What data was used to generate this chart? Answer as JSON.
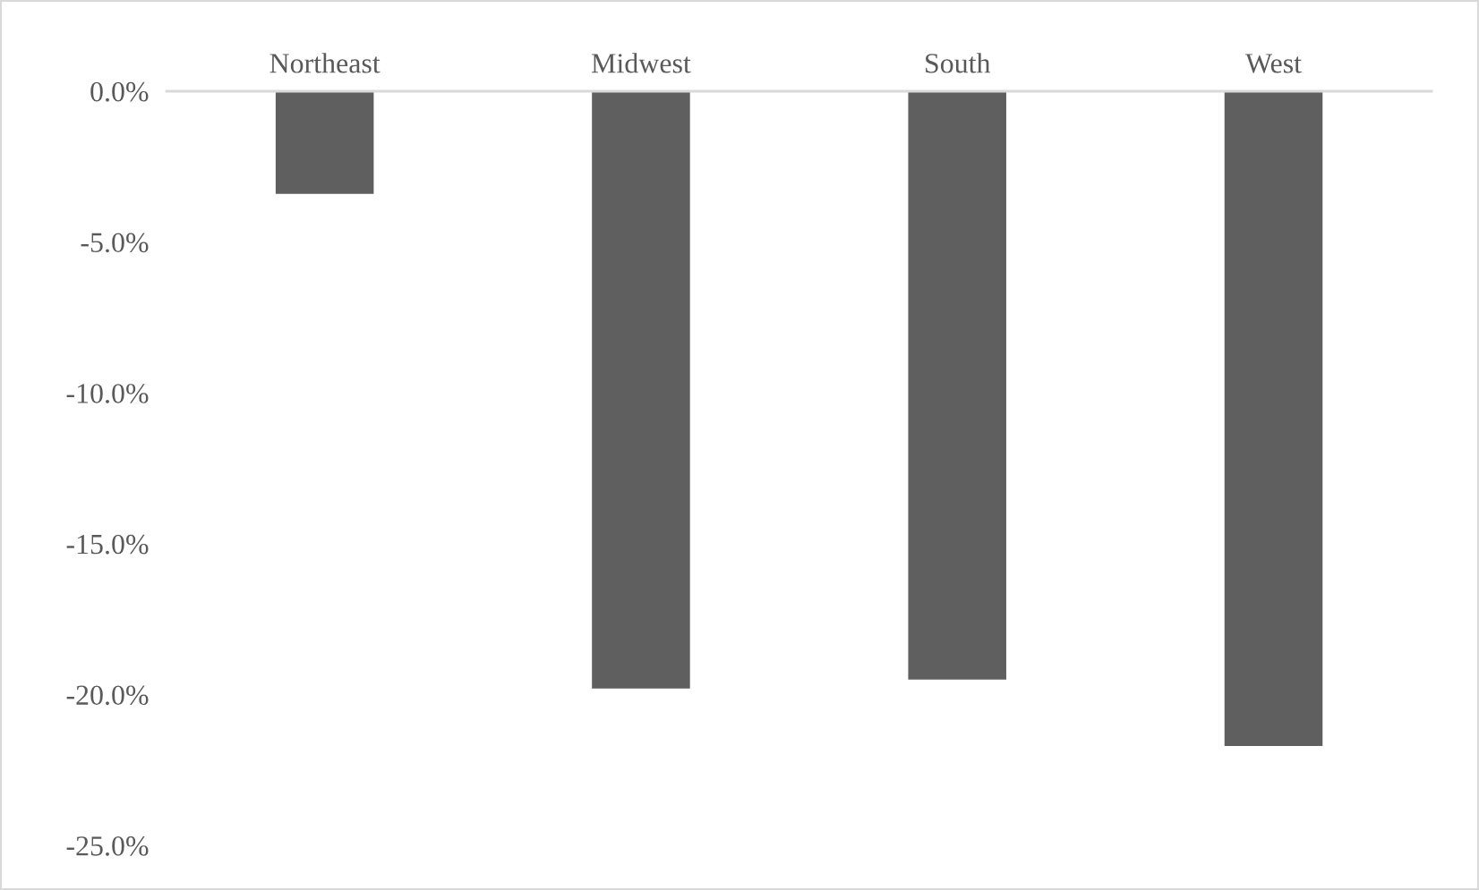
{
  "chart_data": {
    "type": "bar",
    "categories": [
      "Northeast",
      "Midwest",
      "South",
      "West"
    ],
    "values": [
      -3.4,
      -19.8,
      -19.5,
      -21.7
    ],
    "color": "#5f5f5f",
    "ylim": [
      -25,
      0
    ],
    "yticks": [
      {
        "value": 0,
        "label": "0.0%"
      },
      {
        "value": -5,
        "label": "-5.0%"
      },
      {
        "value": -10,
        "label": "-10.0%"
      },
      {
        "value": -15,
        "label": "-15.0%"
      },
      {
        "value": -20,
        "label": "-20.0%"
      },
      {
        "value": -25,
        "label": "-25.0%"
      }
    ],
    "grid": false,
    "legend": false
  }
}
